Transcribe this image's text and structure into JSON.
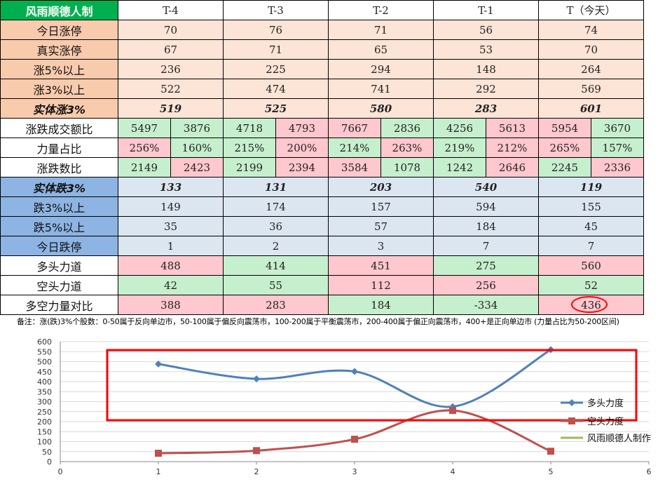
{
  "table": {
    "title": "风雨顺德人制",
    "columns": [
      "T-4",
      "T-3",
      "T-2",
      "T-1",
      "T（今天）"
    ],
    "rows": {
      "limit_up": {
        "label": "今日涨停",
        "values": [
          "70",
          "76",
          "71",
          "56",
          "74"
        ]
      },
      "real_limit_up": {
        "label": "真实涨停",
        "values": [
          "67",
          "71",
          "65",
          "53",
          "70"
        ]
      },
      "up5": {
        "label": "涨5%以上",
        "values": [
          "236",
          "225",
          "294",
          "148",
          "264"
        ]
      },
      "up3": {
        "label": "涨3%以上",
        "values": [
          "522",
          "474",
          "741",
          "292",
          "569"
        ]
      },
      "solid_up3": {
        "label": "实体涨3%",
        "values": [
          "519",
          "525",
          "580",
          "283",
          "601"
        ]
      },
      "turnover_ratio": {
        "label": "涨跌成交额比",
        "values": [
          "5497",
          "3876",
          "4718",
          "4793",
          "7667",
          "2836",
          "4256",
          "5613",
          "5954",
          "3670"
        ]
      },
      "strength_ratio": {
        "label": "力量占比",
        "values": [
          "256%",
          "160%",
          "215%",
          "200%",
          "214%",
          "263%",
          "219%",
          "212%",
          "265%",
          "157%"
        ]
      },
      "count_ratio": {
        "label": "涨跌数比",
        "values": [
          "2149",
          "2423",
          "2199",
          "2394",
          "3584",
          "1078",
          "1242",
          "2646",
          "2245",
          "2336"
        ]
      },
      "solid_down3": {
        "label": "实体跌3%",
        "values": [
          "133",
          "131",
          "203",
          "540",
          "119"
        ]
      },
      "down3": {
        "label": "跌3%以上",
        "values": [
          "149",
          "174",
          "157",
          "594",
          "155"
        ]
      },
      "down5": {
        "label": "跌5%以上",
        "values": [
          "35",
          "36",
          "57",
          "184",
          "45"
        ]
      },
      "limit_down": {
        "label": "今日跌停",
        "values": [
          "1",
          "2",
          "3",
          "7",
          "7"
        ]
      },
      "bull_force": {
        "label": "多头力道",
        "values": [
          "488",
          "414",
          "451",
          "275",
          "560"
        ]
      },
      "bear_force": {
        "label": "空头力道",
        "values": [
          "42",
          "55",
          "112",
          "256",
          "52"
        ]
      },
      "net_force": {
        "label": "多空力量对比",
        "values": [
          "388",
          "283",
          "184",
          "-334",
          "436"
        ]
      }
    }
  },
  "note": "备注：涨(跌)3%个股数：0-50属于反向单边市，50-100属于偏反向震荡市，100-200属于平衡震荡市，200-400属于偏正向震荡市，400+是正向单边市 (力量占比为50-200区间)",
  "chart_data": {
    "type": "scatter",
    "x_ticks": [
      "0",
      "1",
      "2",
      "3",
      "4",
      "5",
      "6"
    ],
    "y_ticks": [
      "0",
      "50",
      "100",
      "150",
      "200",
      "250",
      "300",
      "350",
      "400",
      "450",
      "500",
      "550",
      "600"
    ],
    "xlim": [
      0,
      6
    ],
    "ylim": [
      0,
      600
    ],
    "grid": "horizontal",
    "legend_position": "right",
    "series": [
      {
        "name": "多头力度",
        "color": "#4f81bd",
        "marker": "diamond",
        "x": [
          1,
          2,
          3,
          4,
          5
        ],
        "y": [
          488,
          414,
          451,
          275,
          560
        ]
      },
      {
        "name": "空头力度",
        "color": "#c0504d",
        "marker": "square",
        "x": [
          1,
          2,
          3,
          4,
          5
        ],
        "y": [
          42,
          55,
          112,
          256,
          52
        ]
      },
      {
        "name": "风雨顺德人制作",
        "color": "#9bbb59",
        "marker": "none",
        "x": [],
        "y": []
      }
    ],
    "highlight_box_color": "#ff0000"
  }
}
